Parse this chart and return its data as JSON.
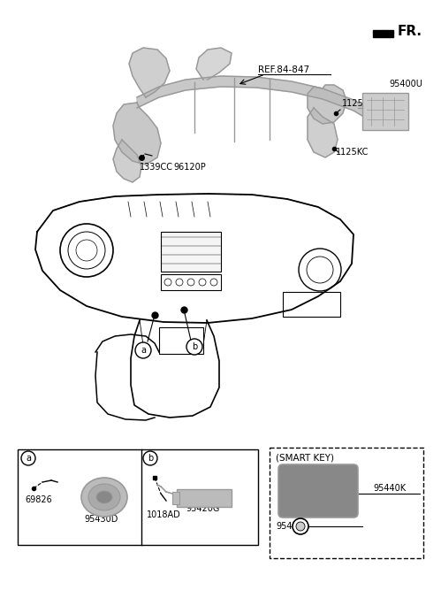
{
  "bg_color": "#ffffff",
  "fr_label": "FR.",
  "ref_label": "REF.84-847",
  "label_1339CC": "1339CC",
  "label_96120P": "96120P",
  "label_1125KC_top": "1125KC",
  "label_95400U": "95400U",
  "label_1125KC_bot": "1125KC",
  "label_69826": "69826",
  "label_95430D": "95430D",
  "label_1018AD": "1018AD",
  "label_95420G": "95420G",
  "label_95413A": "95413A",
  "label_95440K": "95440K",
  "label_smart_key": "(SMART KEY)",
  "circle_a": "a",
  "circle_b": "b",
  "line_color": "#000000",
  "part_color": "#999999",
  "part_fill": "#bbbbbb",
  "ecu_fill": "#cccccc"
}
